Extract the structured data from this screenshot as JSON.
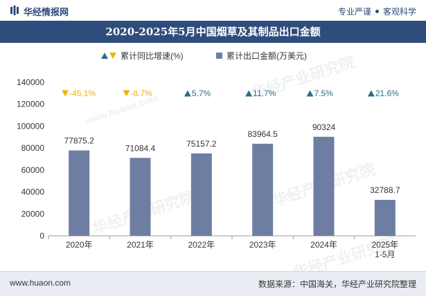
{
  "header": {
    "brand": "华经情报网",
    "slogan_left": "专业严谨",
    "slogan_right": "客观科学"
  },
  "title": "2020-2025年5月中国烟草及其制品出口金额",
  "legend": {
    "growth_label": "累计同比增速(%)",
    "amount_label": "累计出口金额(万美元)"
  },
  "watermarks": [
    "华经产业研究院",
    "www.huaon.com",
    "华经产业研究院",
    "华经产业研究院",
    "华经产业研究院"
  ],
  "footer": {
    "website": "www.huaon.com",
    "source": "数据来源：中国海关，华经产业研究院整理"
  },
  "colors": {
    "bar": "#6e7ea3",
    "negative": "#f0b400",
    "positive": "#2c6d8c",
    "title_bg": "#2f4d7c"
  },
  "chart_data": {
    "type": "bar",
    "categories": [
      "2020年",
      "2021年",
      "2022年",
      "2023年",
      "2024年",
      "2025年\n1-5月"
    ],
    "series": [
      {
        "name": "累计出口金额(万美元)",
        "values": [
          77875.2,
          71084.4,
          75157.2,
          83964.5,
          90324,
          32788.7
        ]
      },
      {
        "name": "累计同比增速(%)",
        "values": [
          -45.1,
          -8.7,
          5.7,
          11.7,
          7.5,
          21.6
        ]
      }
    ],
    "value_labels": [
      "77875.2",
      "71084.4",
      "75157.2",
      "83964.5",
      "90324",
      "32788.7"
    ],
    "growth_labels": [
      "-45.1%",
      "-8.7%",
      "5.7%",
      "11.7%",
      "7.5%",
      "21.6%"
    ],
    "yticks": [
      "0",
      "20000",
      "40000",
      "60000",
      "80000",
      "100000",
      "120000",
      "140000"
    ],
    "ylim": [
      0,
      140000
    ],
    "grid": false
  }
}
